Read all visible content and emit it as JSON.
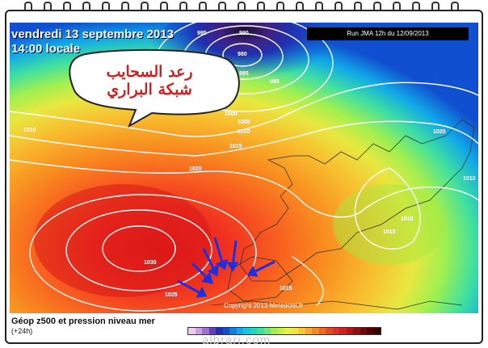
{
  "header": {
    "date": "vendredi 13 septembre 2013",
    "time": "14:00 locale",
    "run": "Run JMA 12h du 12/09/2013"
  },
  "bubble": {
    "line1": "رعد السحايب",
    "line2": "شبكة البراري"
  },
  "isobars": [
    {
      "id": "990",
      "label": "990"
    },
    {
      "id": "995a",
      "label": "995"
    },
    {
      "id": "985",
      "label": "985"
    },
    {
      "id": "995b",
      "label": "995"
    },
    {
      "id": "980",
      "label": "980"
    },
    {
      "id": "1000",
      "label": "1000"
    },
    {
      "id": "1005",
      "label": "1005"
    },
    {
      "id": "1010a",
      "label": "1010"
    },
    {
      "id": "1010b",
      "label": "1010"
    },
    {
      "id": "1015a",
      "label": "1015"
    },
    {
      "id": "1020a",
      "label": "1020"
    },
    {
      "id": "1020b",
      "label": "1020"
    },
    {
      "id": "1010c",
      "label": "1010"
    },
    {
      "id": "1015b",
      "label": "1015"
    },
    {
      "id": "1030",
      "label": "1030"
    },
    {
      "id": "1025",
      "label": "1025"
    },
    {
      "id": "1015c",
      "label": "1015"
    },
    {
      "id": "1010d",
      "label": "1010"
    }
  ],
  "copyright": "Copyright 2013 Meteociel.fr",
  "legend": {
    "title": "Géop z500 et pression niveau mer",
    "subtitle": "(+24h)",
    "colors": [
      "#f0c8f0",
      "#c8a0e0",
      "#a070d0",
      "#6040c0",
      "#2030b0",
      "#1050d0",
      "#1080e0",
      "#10a8e8",
      "#10c8e0",
      "#20d8c0",
      "#40e0a0",
      "#70e870",
      "#a0f050",
      "#c8f040",
      "#e8f040",
      "#f8e040",
      "#f8c830",
      "#f8a828",
      "#f88820",
      "#f06820",
      "#e84820",
      "#e03020",
      "#d02020",
      "#b01818",
      "#901010",
      "#700808",
      "#500000",
      "#300000"
    ]
  },
  "watermark": "albrari.com"
}
